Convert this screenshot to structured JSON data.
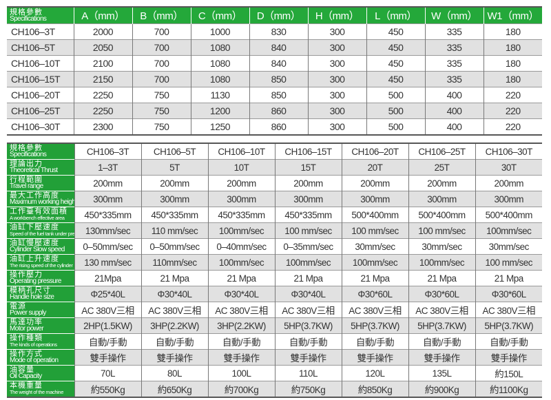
{
  "dimensions_table": {
    "header_label": {
      "zh": "規格參數",
      "en": "Specifications"
    },
    "columns": [
      "A（mm）",
      "B（mm）",
      "C（mm）",
      "D（mm）",
      "H（mm）",
      "L（mm）",
      "W（mm）",
      "W1（mm）"
    ],
    "rows": [
      {
        "model": "CH106–3T",
        "values": [
          "2000",
          "700",
          "1000",
          "830",
          "300",
          "450",
          "335",
          "180"
        ]
      },
      {
        "model": "CH106–5T",
        "values": [
          "2050",
          "700",
          "1080",
          "840",
          "300",
          "450",
          "335",
          "180"
        ]
      },
      {
        "model": "CH106–10T",
        "values": [
          "2100",
          "700",
          "1080",
          "840",
          "300",
          "450",
          "335",
          "180"
        ]
      },
      {
        "model": "CH106–15T",
        "values": [
          "2150",
          "700",
          "1080",
          "850",
          "300",
          "450",
          "335",
          "180"
        ]
      },
      {
        "model": "CH106–20T",
        "values": [
          "2250",
          "750",
          "1130",
          "850",
          "300",
          "500",
          "400",
          "220"
        ]
      },
      {
        "model": "CH106–25T",
        "values": [
          "2250",
          "750",
          "1200",
          "860",
          "300",
          "500",
          "400",
          "220"
        ]
      },
      {
        "model": "CH106–30T",
        "values": [
          "2300",
          "750",
          "1250",
          "860",
          "300",
          "500",
          "400",
          "220"
        ]
      }
    ]
  },
  "specs_table": {
    "rows": [
      {
        "zh": "規格參數",
        "en": "Specifications",
        "values": [
          "CH106–3T",
          "CH106–5T",
          "CH106–10T",
          "CH106–15T",
          "CH106–20T",
          "CH106–25T",
          "CH106–30T"
        ]
      },
      {
        "zh": "理論出力",
        "en": "Theoretical Thrust",
        "values": [
          "1–3T",
          "5T",
          "10T",
          "15T",
          "20T",
          "25T",
          "30T"
        ]
      },
      {
        "zh": "行程範圍",
        "en": "Travel range",
        "values": [
          "200mm",
          "200mm",
          "200mm",
          "200mm",
          "200mm",
          "200mm",
          "200mm"
        ]
      },
      {
        "zh": "最大工作高度",
        "en": "Maximum working height",
        "values": [
          "300mm",
          "300mm",
          "300mm",
          "300mm",
          "300mm",
          "300mm",
          "300mm"
        ]
      },
      {
        "zh": "工作臺有效面積",
        "en": "A workbench effective area",
        "values": [
          "450*335mm",
          "450*335mm",
          "450*335mm",
          "450*335mm",
          "500*400mm",
          "500*400mm",
          "500*400mm"
        ]
      },
      {
        "zh": "油缸下壓速度",
        "en": "Speed of the fuel tank under pressure",
        "values": [
          "130mm/sec",
          "110 mm/sec",
          "100mm/sec",
          "100 mm/sec",
          "100 mm/sec",
          "100 mm/sec",
          "100mm/sec"
        ]
      },
      {
        "zh": "油缸慢壓速度",
        "en": "Cylinder Slow speed",
        "values": [
          "0–50mm/sec",
          "0–50mm/sec",
          "0–40mm/sec",
          "0–35mm/sec",
          "30mm/sec",
          "30mm/sec",
          "30mm/sec"
        ]
      },
      {
        "zh": "油缸上升速度",
        "en": "The rising speed of the cylinder",
        "values": [
          "130 mm/sec",
          "110mm/sec",
          "100mm/sec",
          "100mm/sec",
          "100mm/sec",
          "100mm/sec",
          "100 mm/sec"
        ]
      },
      {
        "zh": "操作壓力",
        "en": "Operating pressure",
        "values": [
          "21Mpa",
          "21 Mpa",
          "21 Mpa",
          "21 Mpa",
          "21 Mpa",
          "21 Mpa",
          "21 Mpa"
        ]
      },
      {
        "zh": "模柄孔尺寸",
        "en": "Handle hole size",
        "values": [
          "Φ25*40L",
          "Φ30*40L",
          "Φ30*40L",
          "Φ30*40L",
          "Φ30*60L",
          "Φ30*60L",
          "Φ30*60L"
        ]
      },
      {
        "zh": "電源",
        "en": "Power supply",
        "values": [
          "AC 380V三相",
          "AC 380V三相",
          "AC 380V三相",
          "AC 380V三相",
          "AC 380V三相",
          "AC 380V三相",
          "AC 380V三相"
        ]
      },
      {
        "zh": "馬達功率",
        "en": "Motor power",
        "values": [
          "2HP(1.5KW)",
          "3HP(2.2KW)",
          "3HP(2.2KW)",
          "5HP(3.7KW)",
          "5HP(3.7KW)",
          "5HP(3.7KW)",
          "5HP(3.7KW)"
        ]
      },
      {
        "zh": "操作種類",
        "en": "The kinds of operations",
        "values": [
          "自動/手動",
          "自動/手動",
          "自動/手動",
          "自動/手動",
          "自動/手動",
          "自動/手動",
          "自動/手動"
        ]
      },
      {
        "zh": "操作方式",
        "en": "Mode of operation",
        "values": [
          "雙手操作",
          "雙手操作",
          "雙手操作",
          "雙手操作",
          "雙手操作",
          "雙手操作",
          "雙手操作"
        ]
      },
      {
        "zh": "油容量",
        "en": "Oil Capacity",
        "values": [
          "70L",
          "80L",
          "100L",
          "110L",
          "120L",
          "135L",
          "約150L"
        ]
      },
      {
        "zh": "本機重量",
        "en": "The weight of the machine",
        "values": [
          "約550Kg",
          "約650Kg",
          "約700Kg",
          "約750Kg",
          "約850Kg",
          "約900Kg",
          "約1100Kg"
        ]
      }
    ]
  },
  "colors": {
    "header_green": "#24a83a",
    "label_green": "#22a038",
    "stripe_gray": "#e1e1e1"
  }
}
